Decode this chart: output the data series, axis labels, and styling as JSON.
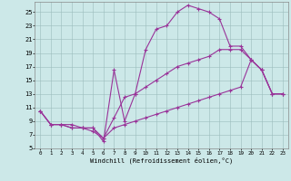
{
  "xlabel": "Windchill (Refroidissement éolien,°C)",
  "bg_color": "#cce8e8",
  "line_color": "#993399",
  "xlim": [
    -0.5,
    23.5
  ],
  "ylim": [
    5,
    26.5
  ],
  "xticks": [
    0,
    1,
    2,
    3,
    4,
    5,
    6,
    7,
    8,
    9,
    10,
    11,
    12,
    13,
    14,
    15,
    16,
    17,
    18,
    19,
    20,
    21,
    22,
    23
  ],
  "yticks": [
    5,
    7,
    9,
    11,
    13,
    15,
    17,
    19,
    21,
    23,
    25
  ],
  "series1": [
    [
      0,
      10.5
    ],
    [
      1,
      8.5
    ],
    [
      2,
      8.5
    ],
    [
      3,
      8.5
    ],
    [
      4,
      8.0
    ],
    [
      5,
      8.0
    ],
    [
      6,
      6.0
    ],
    [
      7,
      16.5
    ],
    [
      8,
      9.0
    ],
    [
      9,
      13.0
    ],
    [
      10,
      19.5
    ],
    [
      11,
      22.5
    ],
    [
      12,
      23.0
    ],
    [
      13,
      25.0
    ],
    [
      14,
      26.0
    ],
    [
      15,
      25.5
    ],
    [
      16,
      25.0
    ],
    [
      17,
      24.0
    ],
    [
      18,
      20.0
    ],
    [
      19,
      20.0
    ],
    [
      20,
      18.0
    ],
    [
      21,
      16.5
    ],
    [
      22,
      13.0
    ],
    [
      23,
      13.0
    ]
  ],
  "series2": [
    [
      0,
      10.5
    ],
    [
      1,
      8.5
    ],
    [
      2,
      8.5
    ],
    [
      3,
      8.0
    ],
    [
      4,
      8.0
    ],
    [
      5,
      8.0
    ],
    [
      6,
      6.5
    ],
    [
      7,
      9.5
    ],
    [
      8,
      12.5
    ],
    [
      9,
      13.0
    ],
    [
      10,
      14.0
    ],
    [
      11,
      15.0
    ],
    [
      12,
      16.0
    ],
    [
      13,
      17.0
    ],
    [
      14,
      17.5
    ],
    [
      15,
      18.0
    ],
    [
      16,
      18.5
    ],
    [
      17,
      19.5
    ],
    [
      18,
      19.5
    ],
    [
      19,
      19.5
    ],
    [
      20,
      18.0
    ],
    [
      21,
      16.5
    ],
    [
      22,
      13.0
    ],
    [
      23,
      13.0
    ]
  ],
  "series3": [
    [
      0,
      10.5
    ],
    [
      1,
      8.5
    ],
    [
      2,
      8.5
    ],
    [
      3,
      8.0
    ],
    [
      4,
      8.0
    ],
    [
      5,
      7.5
    ],
    [
      6,
      6.5
    ],
    [
      7,
      8.0
    ],
    [
      8,
      8.5
    ],
    [
      9,
      9.0
    ],
    [
      10,
      9.5
    ],
    [
      11,
      10.0
    ],
    [
      12,
      10.5
    ],
    [
      13,
      11.0
    ],
    [
      14,
      11.5
    ],
    [
      15,
      12.0
    ],
    [
      16,
      12.5
    ],
    [
      17,
      13.0
    ],
    [
      18,
      13.5
    ],
    [
      19,
      14.0
    ],
    [
      20,
      18.0
    ],
    [
      21,
      16.5
    ],
    [
      22,
      13.0
    ],
    [
      23,
      13.0
    ]
  ]
}
